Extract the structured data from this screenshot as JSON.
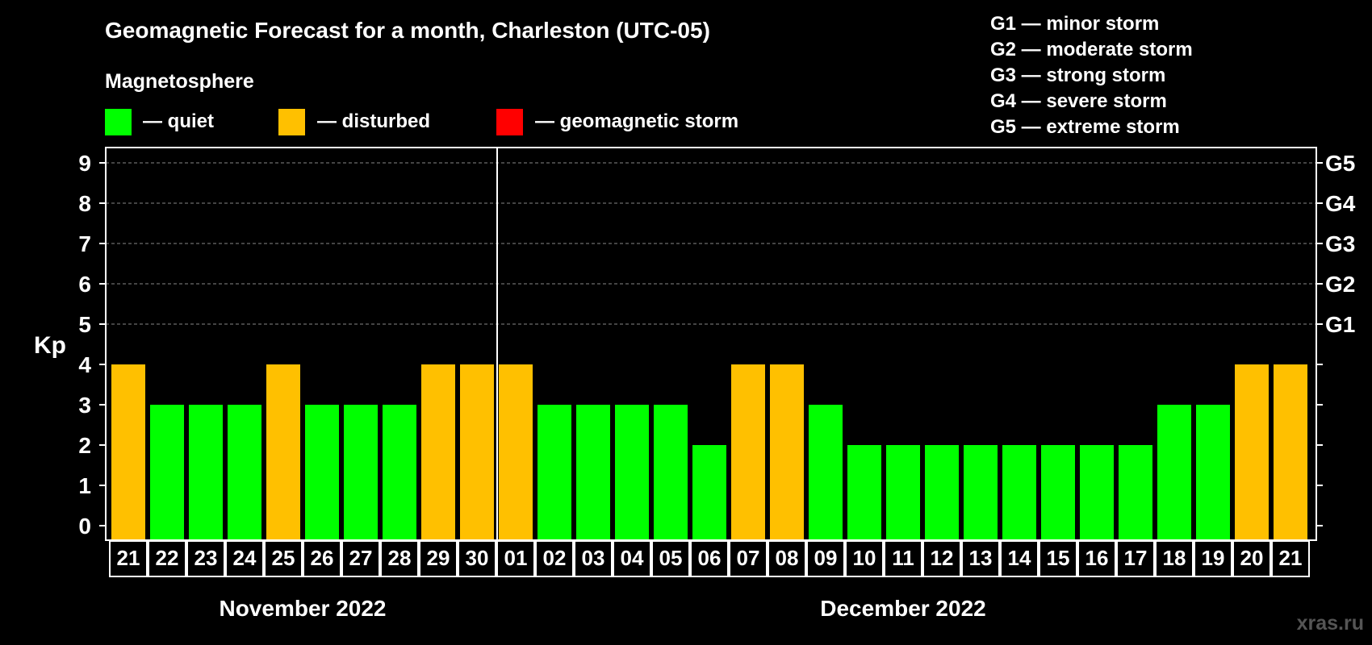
{
  "title": "Geomagnetic Forecast for a month, Charleston (UTC-05)",
  "legend": {
    "heading": "Magnetosphere",
    "items": [
      {
        "label": "— quiet",
        "color": "#00ff00"
      },
      {
        "label": "— disturbed",
        "color": "#ffc000"
      },
      {
        "label": "— geomagnetic storm",
        "color": "#ff0000"
      }
    ]
  },
  "storm_scale": [
    "G1 — minor storm",
    "G2 — moderate storm",
    "G3 — strong storm",
    "G4 — severe storm",
    "G5 — extreme storm"
  ],
  "watermark": "xras.ru",
  "chart_data": {
    "type": "bar",
    "ylabel": "Kp",
    "ylim": [
      0,
      9
    ],
    "yticks": [
      "0",
      "1",
      "2",
      "3",
      "4",
      "5",
      "6",
      "7",
      "8",
      "9"
    ],
    "right_ticks": [
      {
        "kp": 5,
        "label": "G1"
      },
      {
        "kp": 6,
        "label": "G2"
      },
      {
        "kp": 7,
        "label": "G3"
      },
      {
        "kp": 8,
        "label": "G4"
      },
      {
        "kp": 9,
        "label": "G5"
      }
    ],
    "grid": "dashed horizontal at Kp 5-9",
    "categories": [
      "21",
      "22",
      "23",
      "24",
      "25",
      "26",
      "27",
      "28",
      "29",
      "30",
      "01",
      "02",
      "03",
      "04",
      "05",
      "06",
      "07",
      "08",
      "09",
      "10",
      "11",
      "12",
      "13",
      "14",
      "15",
      "16",
      "17",
      "18",
      "19",
      "20",
      "21"
    ],
    "values": [
      4,
      3,
      3,
      3,
      4,
      3,
      3,
      3,
      4,
      4,
      4,
      3,
      3,
      3,
      3,
      2,
      4,
      4,
      3,
      2,
      2,
      2,
      2,
      2,
      2,
      2,
      2,
      3,
      3,
      4,
      4
    ],
    "month_groups": [
      {
        "label": "November 2022",
        "count": 10
      },
      {
        "label": "December 2022",
        "count": 21
      }
    ],
    "color_rule": {
      "quiet_max": 3,
      "disturbed_max": 4
    }
  }
}
